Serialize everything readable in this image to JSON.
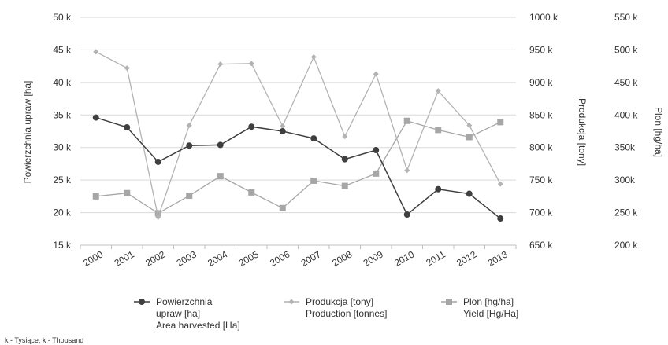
{
  "chart_data": {
    "type": "line",
    "x": [
      "2000",
      "2001",
      "2002",
      "2003",
      "2004",
      "2005",
      "2006",
      "2007",
      "2008",
      "2009",
      "2010",
      "2011",
      "2012",
      "2013"
    ],
    "left_axis": {
      "label": "Powierzchnia upraw [ha]",
      "ylim": [
        15000,
        50000
      ],
      "ticks": [
        "15 k",
        "20 k",
        "25 k",
        "30 k",
        "35 k",
        "40 k",
        "45 k",
        "50 k"
      ]
    },
    "right_axis_1": {
      "label": "Produkcja [tony]",
      "ylim": [
        650000,
        1000000
      ],
      "ticks": [
        "650 k",
        "700 k",
        "750 k",
        "800 k",
        "850 k",
        "900 k",
        "950 k",
        "1000 k"
      ]
    },
    "right_axis_2": {
      "label": "Plon [hg/ha]",
      "ylim": [
        200000,
        550000
      ],
      "ticks": [
        "200 k",
        "250 k",
        "300k",
        "350k",
        "400 k",
        "450 k",
        "500 k",
        "550 k"
      ]
    },
    "series": [
      {
        "key": "area",
        "legend_lines": [
          "Powierzchnia",
          "upraw [ha]",
          "Area harvested [Ha]"
        ],
        "axis": "left",
        "color": "#3f3f3f",
        "marker": "circle",
        "values": [
          34600,
          33100,
          27800,
          30300,
          30400,
          33200,
          32500,
          31400,
          28200,
          29600,
          19700,
          23600,
          22900,
          19100
        ]
      },
      {
        "key": "production",
        "legend_lines": [
          "Produkcja [tony]",
          "Production [tonnes]"
        ],
        "axis": "right_1",
        "color": "#b3b3b3",
        "marker": "diamond",
        "values": [
          947000,
          922000,
          693000,
          834000,
          928000,
          929000,
          833000,
          939000,
          817000,
          913000,
          765000,
          887000,
          834000,
          744000
        ]
      },
      {
        "key": "yield",
        "legend_lines": [
          "Plon [hg/ha]",
          "Yield [Hg/Ha]"
        ],
        "axis": "right_2",
        "color": "#a6a6a6",
        "marker": "square",
        "values": [
          275000,
          280000,
          249000,
          276000,
          306000,
          281000,
          257000,
          299000,
          291000,
          310000,
          391000,
          377000,
          366000,
          389000
        ]
      }
    ],
    "footnote": "k - Tysiące, k - Thousand"
  }
}
